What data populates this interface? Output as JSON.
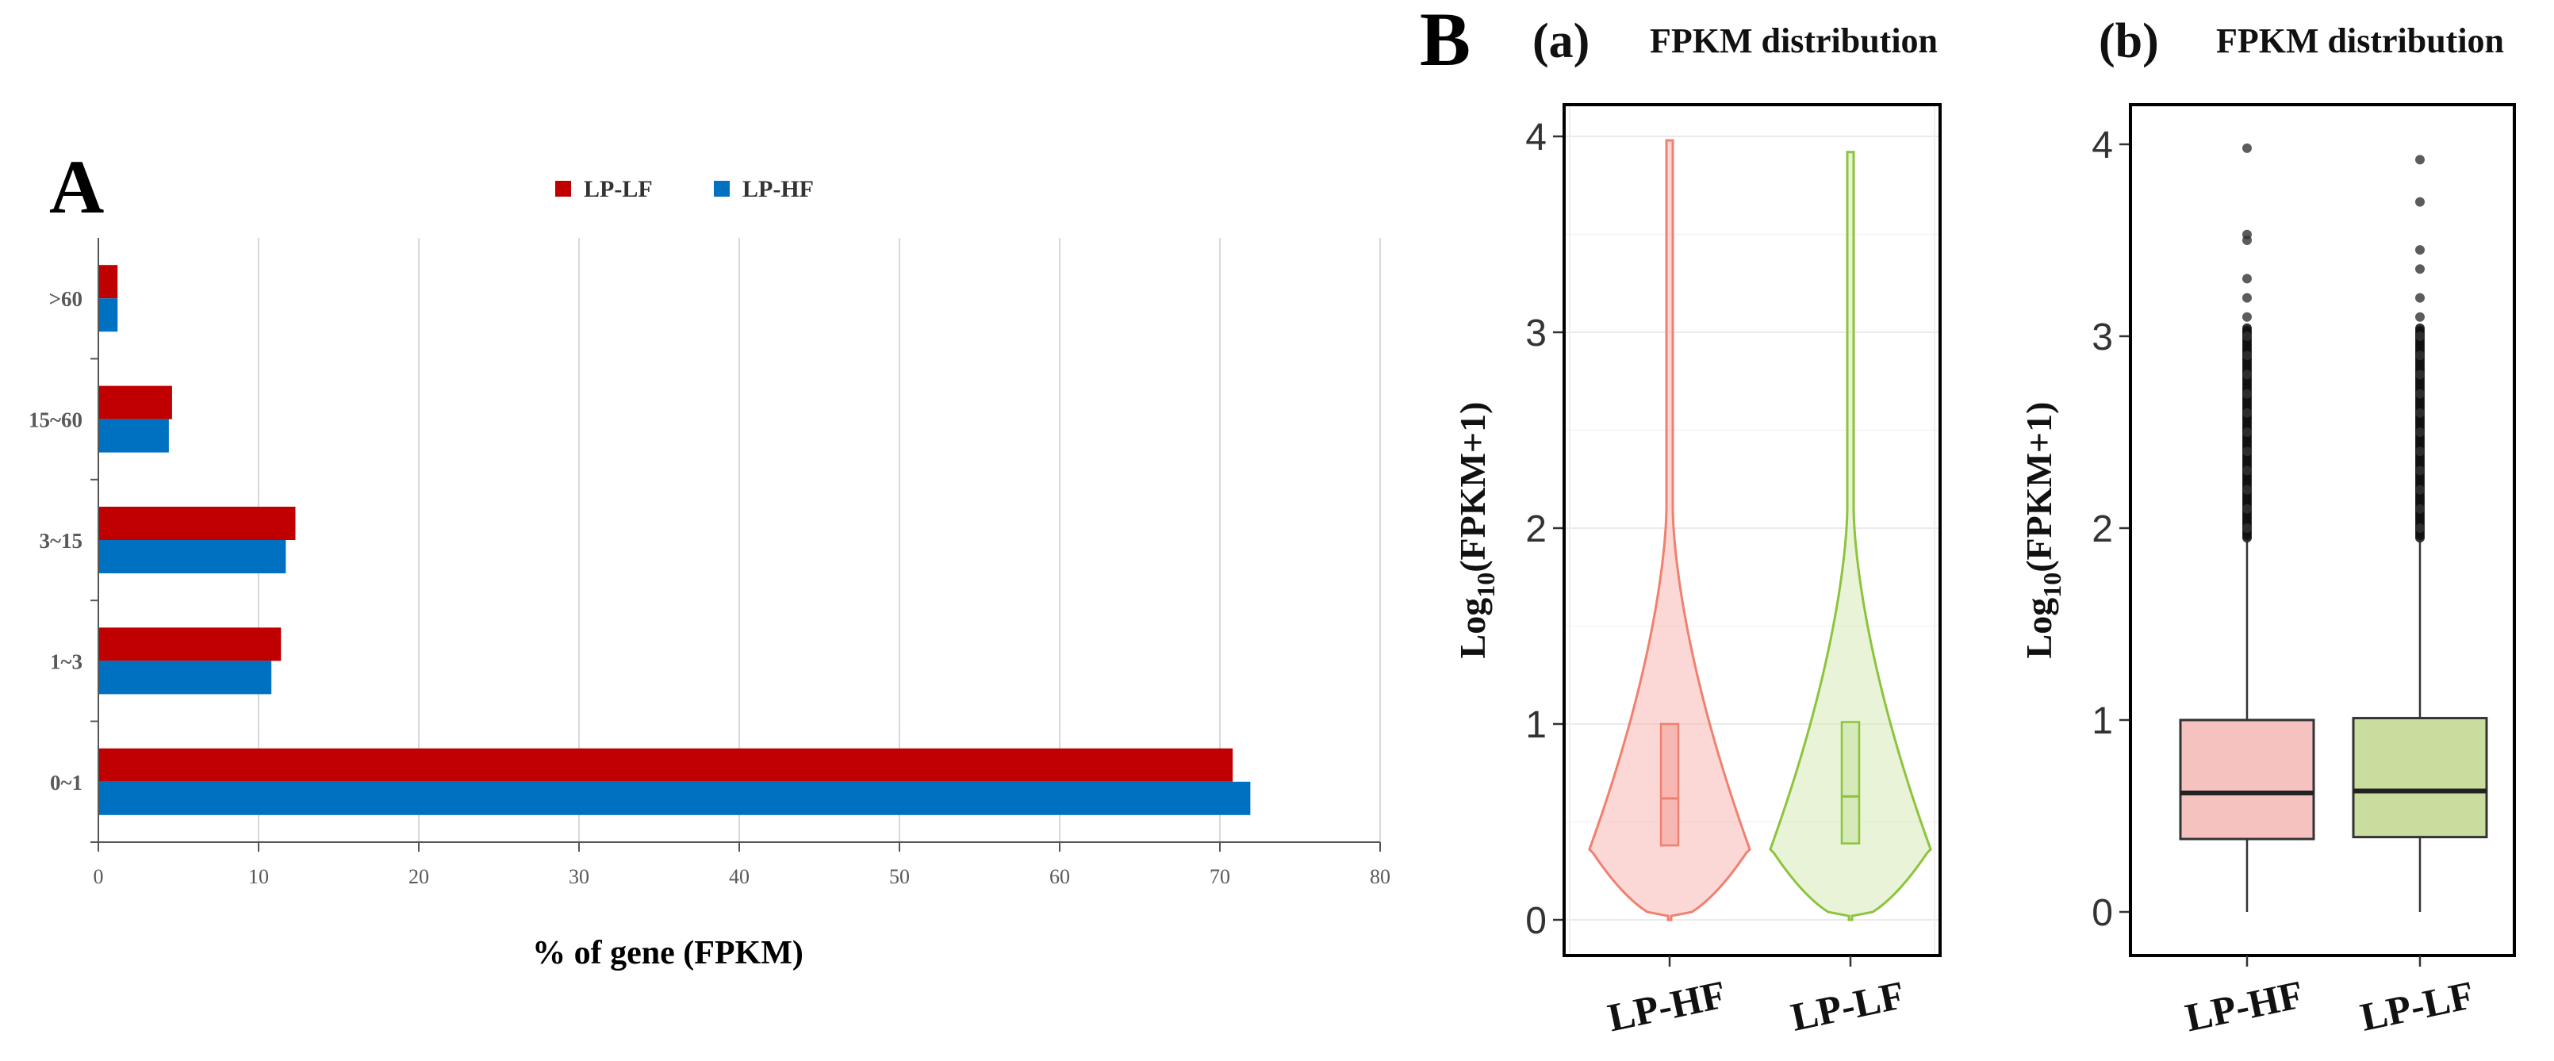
{
  "panels": {
    "a_letter": "A",
    "b_letter": "B"
  },
  "colors": {
    "lp_lf": "#c00000",
    "lp_hf": "#0070c0",
    "violin_hf_fill": "#f7b8b3",
    "violin_hf_line": "#f08070",
    "violin_lf_fill": "#d6e9b8",
    "violin_lf_line": "#8cc43c",
    "box_hf_fill": "#f5c2c0",
    "box_lf_fill": "#c8dd9e",
    "grid": "#d9d9d9"
  },
  "chart_data": [
    {
      "id": "A",
      "type": "bar",
      "orientation": "horizontal",
      "title": "",
      "xlabel": "% of gene (FPKM)",
      "ylabel": "",
      "xlim": [
        0,
        80
      ],
      "xticks": [
        0,
        10,
        20,
        30,
        40,
        50,
        60,
        70,
        80
      ],
      "grid": true,
      "legend_position": "top",
      "categories": [
        "0~1",
        "1~3",
        "3~15",
        "15~60",
        ">60"
      ],
      "series": [
        {
          "name": "LP-LF",
          "color": "#c00000",
          "values": [
            70.8,
            11.4,
            12.3,
            4.6,
            1.2
          ]
        },
        {
          "name": "LP-HF",
          "color": "#0070c0",
          "values": [
            71.9,
            10.8,
            11.7,
            4.4,
            1.2
          ]
        }
      ]
    },
    {
      "id": "B(a)",
      "type": "violin",
      "label": "(a)",
      "title": "FPKM distribution",
      "xlabel": "",
      "ylabel_main": "Log",
      "ylabel_sub": "10",
      "ylabel_rest": "(FPKM+1)",
      "ylim": [
        0,
        4
      ],
      "yticks": [
        0,
        1,
        2,
        3,
        4
      ],
      "grid": true,
      "categories": [
        "LP-HF",
        "LP-LF"
      ],
      "series": [
        {
          "name": "LP-HF",
          "min": 0.0,
          "q1": 0.38,
          "median": 0.62,
          "q3": 1.0,
          "max": 3.98
        },
        {
          "name": "LP-LF",
          "min": 0.0,
          "q1": 0.39,
          "median": 0.63,
          "q3": 1.01,
          "max": 3.92
        }
      ]
    },
    {
      "id": "B(b)",
      "type": "box",
      "label": "(b)",
      "title": "FPKM distribution",
      "xlabel": "",
      "ylabel_main": "Log",
      "ylabel_sub": "10",
      "ylabel_rest": "(FPKM+1)",
      "ylim": [
        0,
        4
      ],
      "yticks": [
        0,
        1,
        2,
        3,
        4
      ],
      "grid": false,
      "categories": [
        "LP-HF",
        "LP-LF"
      ],
      "series": [
        {
          "name": "LP-HF",
          "min": 0.0,
          "q1": 0.38,
          "median": 0.62,
          "q3": 1.0,
          "whisker_high": 1.93,
          "outliers": [
            2.0,
            2.1,
            2.2,
            2.3,
            2.4,
            2.5,
            2.6,
            2.7,
            2.8,
            2.9,
            3.0,
            3.1,
            3.2,
            3.3,
            3.5,
            3.53,
            3.98
          ]
        },
        {
          "name": "LP-LF",
          "min": 0.0,
          "q1": 0.39,
          "median": 0.63,
          "q3": 1.01,
          "whisker_high": 1.93,
          "outliers": [
            2.0,
            2.1,
            2.2,
            2.3,
            2.4,
            2.5,
            2.6,
            2.7,
            2.8,
            2.9,
            3.0,
            3.1,
            3.2,
            3.35,
            3.45,
            3.7,
            3.92
          ]
        }
      ]
    }
  ]
}
